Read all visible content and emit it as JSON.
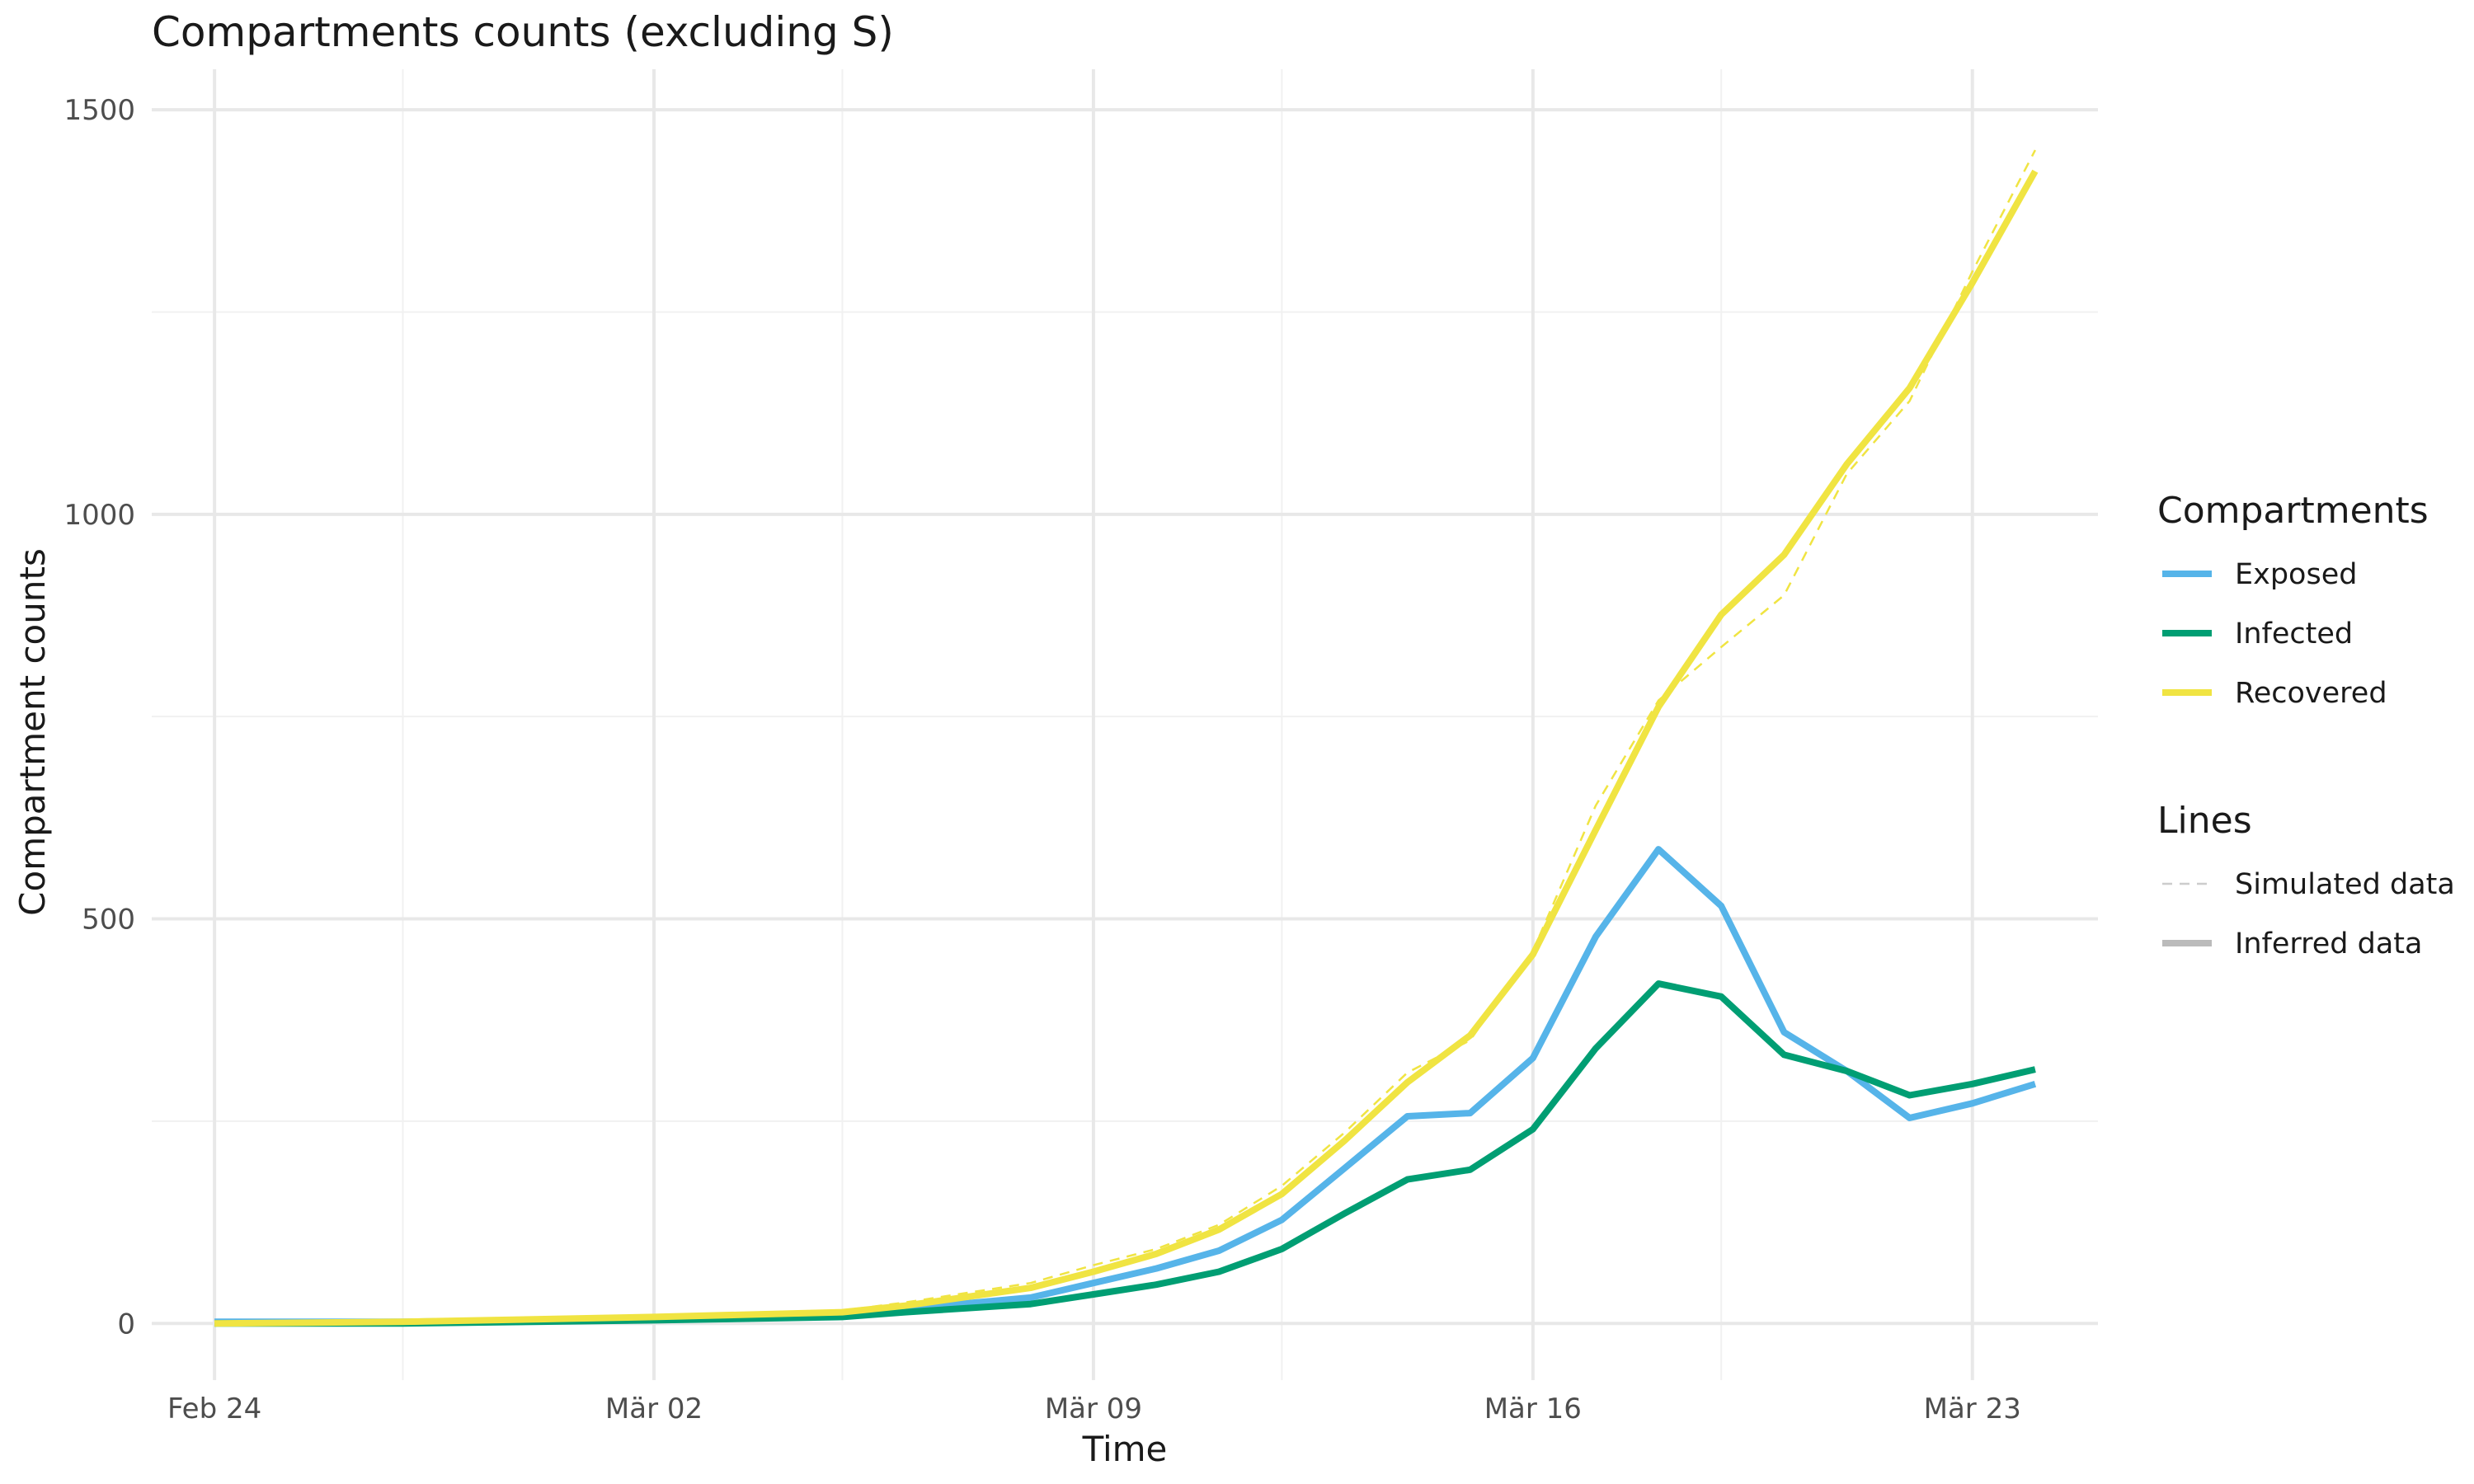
{
  "chart_data": {
    "type": "line",
    "title": "Compartments counts (excluding S)",
    "xlabel": "Time",
    "ylabel": "Compartment counts",
    "ylim": [
      -70,
      1550
    ],
    "xlim": [
      "2020-02-23",
      "2020-03-25"
    ],
    "y_ticks": [
      0,
      500,
      1000,
      1500
    ],
    "y_minor_ticks": [
      250,
      750,
      1250
    ],
    "x_ticks": [
      {
        "date": "2020-02-24",
        "label": "Feb 24"
      },
      {
        "date": "2020-03-02",
        "label": "Mär 02"
      },
      {
        "date": "2020-03-09",
        "label": "Mär 09"
      },
      {
        "date": "2020-03-16",
        "label": "Mär 16"
      },
      {
        "date": "2020-03-23",
        "label": "Mär 23"
      }
    ],
    "x_minor_ticks": [
      "2020-02-27",
      "2020-03-05",
      "2020-03-12",
      "2020-03-19"
    ],
    "grid": true,
    "legend_placement": "right",
    "legends": [
      {
        "title": "Compartments",
        "entries": [
          {
            "label": "Exposed",
            "color": "#56B4E9"
          },
          {
            "label": "Infected",
            "color": "#009E73"
          },
          {
            "label": "Recovered",
            "color": "#F0E442"
          }
        ]
      },
      {
        "title": "Lines",
        "entries": [
          {
            "label": "Simulated data",
            "style": "dashed",
            "color": "#cccccc"
          },
          {
            "label": "Inferred data",
            "style": "solid",
            "color": "#bbbbbb"
          }
        ]
      }
    ],
    "series": [
      {
        "compartment": "Exposed",
        "kind": "inferred",
        "color": "#56B4E9",
        "points": [
          [
            "2020-02-24",
            2
          ],
          [
            "2020-02-27",
            2
          ],
          [
            "2020-03-02",
            6
          ],
          [
            "2020-03-05",
            10
          ],
          [
            "2020-03-06",
            18
          ],
          [
            "2020-03-08",
            32
          ],
          [
            "2020-03-09",
            50
          ],
          [
            "2020-03-10",
            68
          ],
          [
            "2020-03-11",
            90
          ],
          [
            "2020-03-12",
            128
          ],
          [
            "2020-03-13",
            192
          ],
          [
            "2020-03-14",
            256
          ],
          [
            "2020-03-15",
            260
          ],
          [
            "2020-03-16",
            328
          ],
          [
            "2020-03-17",
            478
          ],
          [
            "2020-03-18",
            586
          ],
          [
            "2020-03-19",
            516
          ],
          [
            "2020-03-20",
            360
          ],
          [
            "2020-03-21",
            312
          ],
          [
            "2020-03-22",
            254
          ],
          [
            "2020-03-23",
            272
          ],
          [
            "2020-03-24",
            296
          ]
        ]
      },
      {
        "compartment": "Infected",
        "kind": "inferred",
        "color": "#009E73",
        "points": [
          [
            "2020-02-24",
            0
          ],
          [
            "2020-02-27",
            0
          ],
          [
            "2020-03-02",
            4
          ],
          [
            "2020-03-05",
            8
          ],
          [
            "2020-03-06",
            14
          ],
          [
            "2020-03-08",
            24
          ],
          [
            "2020-03-09",
            36
          ],
          [
            "2020-03-10",
            48
          ],
          [
            "2020-03-11",
            64
          ],
          [
            "2020-03-12",
            92
          ],
          [
            "2020-03-13",
            136
          ],
          [
            "2020-03-14",
            178
          ],
          [
            "2020-03-15",
            190
          ],
          [
            "2020-03-16",
            240
          ],
          [
            "2020-03-17",
            340
          ],
          [
            "2020-03-18",
            420
          ],
          [
            "2020-03-19",
            404
          ],
          [
            "2020-03-20",
            332
          ],
          [
            "2020-03-21",
            312
          ],
          [
            "2020-03-22",
            282
          ],
          [
            "2020-03-23",
            296
          ],
          [
            "2020-03-24",
            314
          ]
        ]
      },
      {
        "compartment": "Recovered",
        "kind": "simulated",
        "color": "#F0E442",
        "points": [
          [
            "2020-02-24",
            2
          ],
          [
            "2020-02-27",
            4
          ],
          [
            "2020-03-02",
            10
          ],
          [
            "2020-03-05",
            16
          ],
          [
            "2020-03-06",
            26
          ],
          [
            "2020-03-08",
            50
          ],
          [
            "2020-03-09",
            72
          ],
          [
            "2020-03-10",
            92
          ],
          [
            "2020-03-11",
            122
          ],
          [
            "2020-03-12",
            170
          ],
          [
            "2020-03-13",
            236
          ],
          [
            "2020-03-14",
            310
          ],
          [
            "2020-03-15",
            350
          ],
          [
            "2020-03-16",
            460
          ],
          [
            "2020-03-17",
            640
          ],
          [
            "2020-03-18",
            770
          ],
          [
            "2020-03-19",
            836
          ],
          [
            "2020-03-20",
            900
          ],
          [
            "2020-03-21",
            1050
          ],
          [
            "2020-03-22",
            1140
          ],
          [
            "2020-03-23",
            1300
          ],
          [
            "2020-03-24",
            1450
          ]
        ]
      },
      {
        "compartment": "Recovered",
        "kind": "inferred",
        "color": "#F0E442",
        "points": [
          [
            "2020-02-24",
            0
          ],
          [
            "2020-02-27",
            2
          ],
          [
            "2020-03-02",
            8
          ],
          [
            "2020-03-05",
            14
          ],
          [
            "2020-03-06",
            22
          ],
          [
            "2020-03-08",
            44
          ],
          [
            "2020-03-09",
            64
          ],
          [
            "2020-03-10",
            86
          ],
          [
            "2020-03-11",
            116
          ],
          [
            "2020-03-12",
            160
          ],
          [
            "2020-03-13",
            226
          ],
          [
            "2020-03-14",
            298
          ],
          [
            "2020-03-15",
            356
          ],
          [
            "2020-03-16",
            456
          ],
          [
            "2020-03-17",
            610
          ],
          [
            "2020-03-18",
            762
          ],
          [
            "2020-03-19",
            876
          ],
          [
            "2020-03-20",
            950
          ],
          [
            "2020-03-21",
            1062
          ],
          [
            "2020-03-22",
            1156
          ],
          [
            "2020-03-23",
            1286
          ],
          [
            "2020-03-24",
            1424
          ]
        ]
      }
    ]
  }
}
